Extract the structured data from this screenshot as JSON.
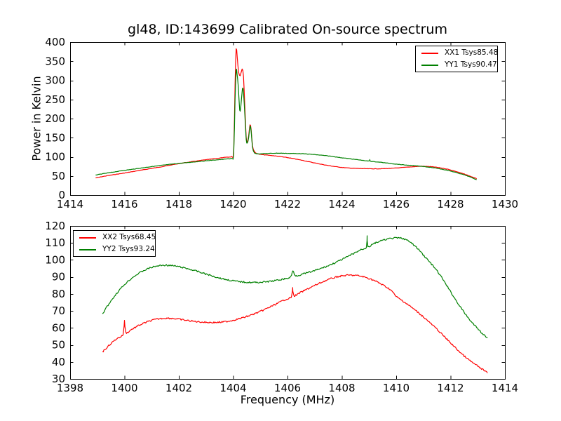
{
  "figure": {
    "title": "gl48, ID:143699 Calibrated On-source spectrum",
    "background": "#ffffff",
    "frame_color": "#000000"
  },
  "chart_data": [
    {
      "type": "line",
      "subplot": "top",
      "ylabel": "Power in Kelvin",
      "xlabel": "",
      "xlim": [
        1414,
        1430
      ],
      "ylim": [
        0,
        400
      ],
      "xticks": [
        1414,
        1416,
        1418,
        1420,
        1422,
        1424,
        1426,
        1428,
        1430
      ],
      "yticks": [
        0,
        50,
        100,
        150,
        200,
        250,
        300,
        350,
        400
      ],
      "grid": false,
      "legend": {
        "position": "upper-right",
        "entries": [
          {
            "label": "XX1 Tsys85.48",
            "color": "#ff0000"
          },
          {
            "label": "YY1 Tsys90.47",
            "color": "#008000"
          }
        ]
      },
      "series": [
        {
          "name": "XX1",
          "color": "#ff0000",
          "noise": 0.5,
          "points": [
            [
              1414.95,
              45
            ],
            [
              1415.4,
              51
            ],
            [
              1415.9,
              56.5
            ],
            [
              1416.4,
              62.5
            ],
            [
              1416.9,
              68.5
            ],
            [
              1417.4,
              74.5
            ],
            [
              1417.9,
              81
            ],
            [
              1418.4,
              86.5
            ],
            [
              1418.9,
              91.5
            ],
            [
              1419.3,
              95
            ],
            [
              1419.7,
              98.5
            ],
            [
              1419.95,
              101
            ],
            [
              1420.02,
              115
            ],
            [
              1420.07,
              290
            ],
            [
              1420.11,
              383
            ],
            [
              1420.15,
              360
            ],
            [
              1420.2,
              322
            ],
            [
              1420.26,
              312
            ],
            [
              1420.33,
              330
            ],
            [
              1420.38,
              310
            ],
            [
              1420.43,
              230
            ],
            [
              1420.48,
              150
            ],
            [
              1420.52,
              139
            ],
            [
              1420.57,
              155
            ],
            [
              1420.62,
              184
            ],
            [
              1420.66,
              172
            ],
            [
              1420.71,
              130
            ],
            [
              1420.78,
              114
            ],
            [
              1420.9,
              108
            ],
            [
              1421.1,
              105.5
            ],
            [
              1421.4,
              103.5
            ],
            [
              1421.8,
              100
            ],
            [
              1422.2,
              95.5
            ],
            [
              1422.6,
              90
            ],
            [
              1423.0,
              84
            ],
            [
              1423.4,
              78.5
            ],
            [
              1423.8,
              74
            ],
            [
              1424.2,
              71
            ],
            [
              1424.6,
              69.5
            ],
            [
              1425.0,
              68.8
            ],
            [
              1425.4,
              68.8
            ],
            [
              1425.8,
              69.8
            ],
            [
              1426.2,
              71.8
            ],
            [
              1426.6,
              74
            ],
            [
              1426.9,
              75.3
            ],
            [
              1427.2,
              74.6
            ],
            [
              1427.5,
              72.5
            ],
            [
              1427.9,
              67.5
            ],
            [
              1428.3,
              59.5
            ],
            [
              1428.6,
              52.5
            ],
            [
              1428.95,
              43
            ]
          ]
        },
        {
          "name": "YY1",
          "color": "#008000",
          "noise": 0.5,
          "points": [
            [
              1414.95,
              52.5
            ],
            [
              1415.4,
              58
            ],
            [
              1415.9,
              63.5
            ],
            [
              1416.4,
              68.5
            ],
            [
              1416.9,
              73.5
            ],
            [
              1417.4,
              78
            ],
            [
              1417.9,
              82
            ],
            [
              1418.4,
              85.5
            ],
            [
              1418.9,
              89
            ],
            [
              1419.3,
              91.5
            ],
            [
              1419.7,
              94
            ],
            [
              1419.95,
              96.5
            ],
            [
              1420.02,
              108
            ],
            [
              1420.07,
              250
            ],
            [
              1420.11,
              326
            ],
            [
              1420.14,
              318
            ],
            [
              1420.19,
              282
            ],
            [
              1420.24,
              222
            ],
            [
              1420.28,
              230
            ],
            [
              1420.34,
              278
            ],
            [
              1420.38,
              268
            ],
            [
              1420.43,
              210
            ],
            [
              1420.48,
              145
            ],
            [
              1420.52,
              136
            ],
            [
              1420.57,
              150
            ],
            [
              1420.62,
              180
            ],
            [
              1420.66,
              168
            ],
            [
              1420.71,
              126
            ],
            [
              1420.78,
              111
            ],
            [
              1420.9,
              108
            ],
            [
              1421.2,
              108.5
            ],
            [
              1421.6,
              109.5
            ],
            [
              1422.0,
              109
            ],
            [
              1422.4,
              108.5
            ],
            [
              1422.8,
              107
            ],
            [
              1423.2,
              104.5
            ],
            [
              1423.6,
              101.5
            ],
            [
              1424.0,
              97.5
            ],
            [
              1424.4,
              94
            ],
            [
              1424.8,
              90.5
            ],
            [
              1425.0,
              89
            ],
            [
              1425.03,
              92.5
            ],
            [
              1425.06,
              88.5
            ],
            [
              1425.4,
              86
            ],
            [
              1425.8,
              82.5
            ],
            [
              1426.2,
              79.5
            ],
            [
              1426.6,
              77
            ],
            [
              1426.9,
              75.5
            ],
            [
              1427.2,
              73
            ],
            [
              1427.5,
              70
            ],
            [
              1427.9,
              64.5
            ],
            [
              1428.3,
              57
            ],
            [
              1428.6,
              50.5
            ],
            [
              1428.95,
              40.5
            ]
          ]
        }
      ]
    },
    {
      "type": "line",
      "subplot": "bottom",
      "ylabel": "",
      "xlabel": "Frequency (MHz)",
      "xlim": [
        1398,
        1414
      ],
      "ylim": [
        30,
        120
      ],
      "xticks": [
        1398,
        1400,
        1402,
        1404,
        1406,
        1408,
        1410,
        1412,
        1414
      ],
      "yticks": [
        30,
        40,
        50,
        60,
        70,
        80,
        90,
        100,
        110,
        120
      ],
      "grid": false,
      "legend": {
        "position": "upper-left",
        "entries": [
          {
            "label": "XX2 Tsys68.45",
            "color": "#ff0000"
          },
          {
            "label": "YY2 Tsys93.24",
            "color": "#008000"
          }
        ]
      },
      "series": [
        {
          "name": "XX2",
          "color": "#ff0000",
          "noise": 0.45,
          "points": [
            [
              1399.2,
              46
            ],
            [
              1399.45,
              50
            ],
            [
              1399.7,
              53.5
            ],
            [
              1399.95,
              56.3
            ],
            [
              1400.0,
              64.3
            ],
            [
              1400.05,
              57.3
            ],
            [
              1400.25,
              59
            ],
            [
              1400.5,
              61.2
            ],
            [
              1400.75,
              63
            ],
            [
              1401.0,
              64.4
            ],
            [
              1401.25,
              65.3
            ],
            [
              1401.5,
              65.7
            ],
            [
              1401.75,
              65.6
            ],
            [
              1402.0,
              65.1
            ],
            [
              1402.3,
              64.4
            ],
            [
              1402.6,
              63.8
            ],
            [
              1402.9,
              63.4
            ],
            [
              1403.2,
              63.2
            ],
            [
              1403.5,
              63.3
            ],
            [
              1403.8,
              63.9
            ],
            [
              1404.1,
              64.9
            ],
            [
              1404.4,
              66.2
            ],
            [
              1404.7,
              67.8
            ],
            [
              1405.0,
              69.7
            ],
            [
              1405.3,
              71.9
            ],
            [
              1405.6,
              74.2
            ],
            [
              1405.9,
              76.6
            ],
            [
              1406.15,
              78.4
            ],
            [
              1406.19,
              84
            ],
            [
              1406.23,
              79
            ],
            [
              1406.5,
              81
            ],
            [
              1406.8,
              83.4
            ],
            [
              1407.1,
              85.7
            ],
            [
              1407.4,
              87.8
            ],
            [
              1407.7,
              89.5
            ],
            [
              1408.0,
              90.6
            ],
            [
              1408.3,
              91
            ],
            [
              1408.6,
              90.7
            ],
            [
              1408.9,
              89.6
            ],
            [
              1409.2,
              87.8
            ],
            [
              1409.5,
              85.3
            ],
            [
              1409.8,
              82.3
            ],
            [
              1410.0,
              78.5
            ],
            [
              1410.25,
              75.8
            ],
            [
              1410.5,
              72.9
            ],
            [
              1410.75,
              69.8
            ],
            [
              1411.0,
              66.5
            ],
            [
              1411.25,
              62.9
            ],
            [
              1411.5,
              59.2
            ],
            [
              1411.75,
              55.2
            ],
            [
              1412.0,
              51.2
            ],
            [
              1412.25,
              47.2
            ],
            [
              1412.5,
              43.5
            ],
            [
              1412.75,
              40.3
            ],
            [
              1413.0,
              37.5
            ],
            [
              1413.2,
              35.3
            ],
            [
              1413.35,
              33.6
            ]
          ]
        },
        {
          "name": "YY2",
          "color": "#008000",
          "noise": 0.45,
          "points": [
            [
              1399.2,
              68.5
            ],
            [
              1399.4,
              73.5
            ],
            [
              1399.6,
              78
            ],
            [
              1399.8,
              82
            ],
            [
              1400.0,
              85.5
            ],
            [
              1400.2,
              88.4
            ],
            [
              1400.4,
              90.8
            ],
            [
              1400.6,
              92.8
            ],
            [
              1400.8,
              94.4
            ],
            [
              1401.0,
              95.6
            ],
            [
              1401.2,
              96.4
            ],
            [
              1401.45,
              96.9
            ],
            [
              1401.7,
              96.7
            ],
            [
              1401.95,
              96.2
            ],
            [
              1402.2,
              95.3
            ],
            [
              1402.5,
              94.1
            ],
            [
              1402.8,
              92.7
            ],
            [
              1403.1,
              91.2
            ],
            [
              1403.4,
              89.8
            ],
            [
              1403.7,
              88.6
            ],
            [
              1404.0,
              87.7
            ],
            [
              1404.3,
              87.1
            ],
            [
              1404.6,
              86.8
            ],
            [
              1404.9,
              86.8
            ],
            [
              1405.2,
              87.1
            ],
            [
              1405.5,
              87.7
            ],
            [
              1405.8,
              88.6
            ],
            [
              1406.1,
              89.8
            ],
            [
              1406.2,
              93.5
            ],
            [
              1406.3,
              90.8
            ],
            [
              1406.6,
              91.9
            ],
            [
              1406.9,
              93.2
            ],
            [
              1407.2,
              94.8
            ],
            [
              1407.5,
              96.6
            ],
            [
              1407.8,
              98.7
            ],
            [
              1408.1,
              101
            ],
            [
              1408.4,
              103.5
            ],
            [
              1408.7,
              106
            ],
            [
              1408.9,
              107.5
            ],
            [
              1408.93,
              114.5
            ],
            [
              1408.96,
              108
            ],
            [
              1409.2,
              109.8
            ],
            [
              1409.5,
              111.5
            ],
            [
              1409.8,
              112.6
            ],
            [
              1410.1,
              112.9
            ],
            [
              1410.3,
              112.3
            ],
            [
              1410.55,
              110
            ],
            [
              1410.8,
              106.5
            ],
            [
              1411.05,
              102
            ],
            [
              1411.3,
              97.5
            ],
            [
              1411.55,
              92.5
            ],
            [
              1411.8,
              86.5
            ],
            [
              1412.05,
              80
            ],
            [
              1412.3,
              73.8
            ],
            [
              1412.55,
              68
            ],
            [
              1412.8,
              63
            ],
            [
              1413.05,
              58.8
            ],
            [
              1413.2,
              56.2
            ],
            [
              1413.35,
              54.2
            ]
          ]
        }
      ]
    }
  ]
}
